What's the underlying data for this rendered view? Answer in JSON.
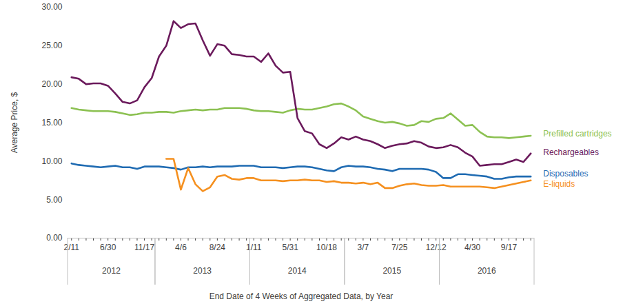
{
  "chart_data": {
    "type": "line",
    "x_label": "End Date of 4 Weeks of Aggregated Data, by Year",
    "y_label": "Average Price, $",
    "categories": [
      "2/11",
      null,
      null,
      null,
      null,
      "6/30",
      null,
      null,
      null,
      null,
      "11/17",
      null,
      null,
      null,
      null,
      "4/6",
      null,
      null,
      null,
      null,
      "8/24",
      null,
      null,
      null,
      null,
      "1/11",
      null,
      null,
      null,
      null,
      "5/31",
      null,
      null,
      null,
      null,
      "10/18",
      null,
      null,
      null,
      null,
      "3/7",
      null,
      null,
      null,
      null,
      "7/25",
      null,
      null,
      null,
      null,
      "12/12",
      null,
      null,
      null,
      null,
      "4/30",
      null,
      null,
      null,
      null,
      "9/17",
      null,
      null,
      null
    ],
    "x_groups": [
      "2012",
      "2012",
      "2012",
      "2012",
      "2012",
      "2012",
      "2012",
      "2012",
      "2012",
      "2012",
      "2012",
      "2012",
      "2013",
      "2013",
      "2013",
      "2013",
      "2013",
      "2013",
      "2013",
      "2013",
      "2013",
      "2013",
      "2013",
      "2013",
      "2013",
      "2014",
      "2014",
      "2014",
      "2014",
      "2014",
      "2014",
      "2014",
      "2014",
      "2014",
      "2014",
      "2014",
      "2014",
      "2014",
      "2015",
      "2015",
      "2015",
      "2015",
      "2015",
      "2015",
      "2015",
      "2015",
      "2015",
      "2015",
      "2015",
      "2015",
      "2015",
      "2016",
      "2016",
      "2016",
      "2016",
      "2016",
      "2016",
      "2016",
      "2016",
      "2016",
      "2016",
      "2016",
      "2016",
      "2016"
    ],
    "series": [
      {
        "name": "Prefilled cartridges",
        "color": "#8cc152",
        "values": [
          16.9,
          16.7,
          16.6,
          16.5,
          16.5,
          16.5,
          16.4,
          16.2,
          16.0,
          16.1,
          16.3,
          16.3,
          16.4,
          16.4,
          16.3,
          16.5,
          16.6,
          16.7,
          16.6,
          16.7,
          16.7,
          16.9,
          16.9,
          16.9,
          16.8,
          16.6,
          16.5,
          16.5,
          16.4,
          16.3,
          16.6,
          16.8,
          16.7,
          16.7,
          16.9,
          17.1,
          17.4,
          17.5,
          17.1,
          16.6,
          15.8,
          15.5,
          15.2,
          15.0,
          15.1,
          14.9,
          14.6,
          14.7,
          15.2,
          15.1,
          15.5,
          15.6,
          16.2,
          15.4,
          14.6,
          14.7,
          13.8,
          13.2,
          13.1,
          13.1,
          13.0,
          13.1,
          13.2,
          13.3
        ]
      },
      {
        "name": "Rechargeables",
        "color": "#6b1a5c",
        "values": [
          20.9,
          20.7,
          20.0,
          20.1,
          20.1,
          19.8,
          18.8,
          17.7,
          17.5,
          17.9,
          19.6,
          20.8,
          23.6,
          25.0,
          28.2,
          27.3,
          27.8,
          27.9,
          25.7,
          23.7,
          25.2,
          25.0,
          23.9,
          23.8,
          23.6,
          23.6,
          22.9,
          24.0,
          22.4,
          21.5,
          21.6,
          15.6,
          13.9,
          13.6,
          12.2,
          11.7,
          12.3,
          13.1,
          12.8,
          13.2,
          12.8,
          12.6,
          12.2,
          11.7,
          12.0,
          12.2,
          12.3,
          12.6,
          12.4,
          11.9,
          11.7,
          11.8,
          12.1,
          11.8,
          11.1,
          10.6,
          9.4,
          9.5,
          9.6,
          9.6,
          9.9,
          10.2,
          9.9,
          11.0
        ]
      },
      {
        "name": "Disposables",
        "color": "#1f6bb2",
        "values": [
          9.7,
          9.5,
          9.4,
          9.3,
          9.2,
          9.3,
          9.4,
          9.2,
          9.2,
          9.0,
          9.3,
          9.3,
          9.3,
          9.2,
          9.1,
          8.9,
          9.2,
          9.2,
          9.3,
          9.2,
          9.3,
          9.3,
          9.3,
          9.4,
          9.4,
          9.4,
          9.2,
          9.2,
          9.2,
          9.1,
          9.2,
          9.3,
          9.3,
          9.2,
          9.0,
          8.8,
          8.7,
          9.2,
          9.4,
          9.3,
          9.3,
          9.2,
          9.0,
          8.9,
          8.7,
          9.0,
          9.0,
          9.0,
          9.0,
          8.9,
          8.6,
          7.8,
          7.8,
          8.3,
          8.3,
          8.2,
          8.1,
          8.0,
          7.7,
          7.7,
          7.9,
          8.0,
          8.0,
          8.0
        ]
      },
      {
        "name": "E-liquids",
        "color": "#f5901f",
        "values": [
          null,
          null,
          null,
          null,
          null,
          null,
          null,
          null,
          null,
          null,
          null,
          null,
          null,
          10.3,
          10.3,
          6.3,
          9.1,
          7.0,
          6.1,
          6.6,
          8.0,
          8.2,
          7.7,
          7.6,
          7.8,
          7.8,
          7.5,
          7.5,
          7.5,
          7.4,
          7.5,
          7.5,
          7.6,
          7.5,
          7.5,
          7.3,
          7.4,
          7.2,
          7.2,
          7.1,
          7.2,
          7.0,
          7.2,
          6.5,
          6.5,
          6.8,
          7.0,
          7.1,
          6.9,
          6.8,
          6.8,
          6.9,
          6.7,
          6.7,
          6.7,
          6.7,
          6.7,
          6.6,
          6.5,
          6.7,
          6.9,
          7.1,
          7.3,
          7.5
        ]
      }
    ],
    "ylim": [
      0,
      30
    ],
    "yticks": [
      {
        "value": 0,
        "label": "0.00"
      },
      {
        "value": 5,
        "label": "5.00"
      },
      {
        "value": 10,
        "label": "10.00"
      },
      {
        "value": 15,
        "label": "15.00"
      },
      {
        "value": 20,
        "label": "20.00"
      },
      {
        "value": 25,
        "label": "25.00"
      },
      {
        "value": 30,
        "label": "30.00"
      }
    ],
    "grid": false
  }
}
